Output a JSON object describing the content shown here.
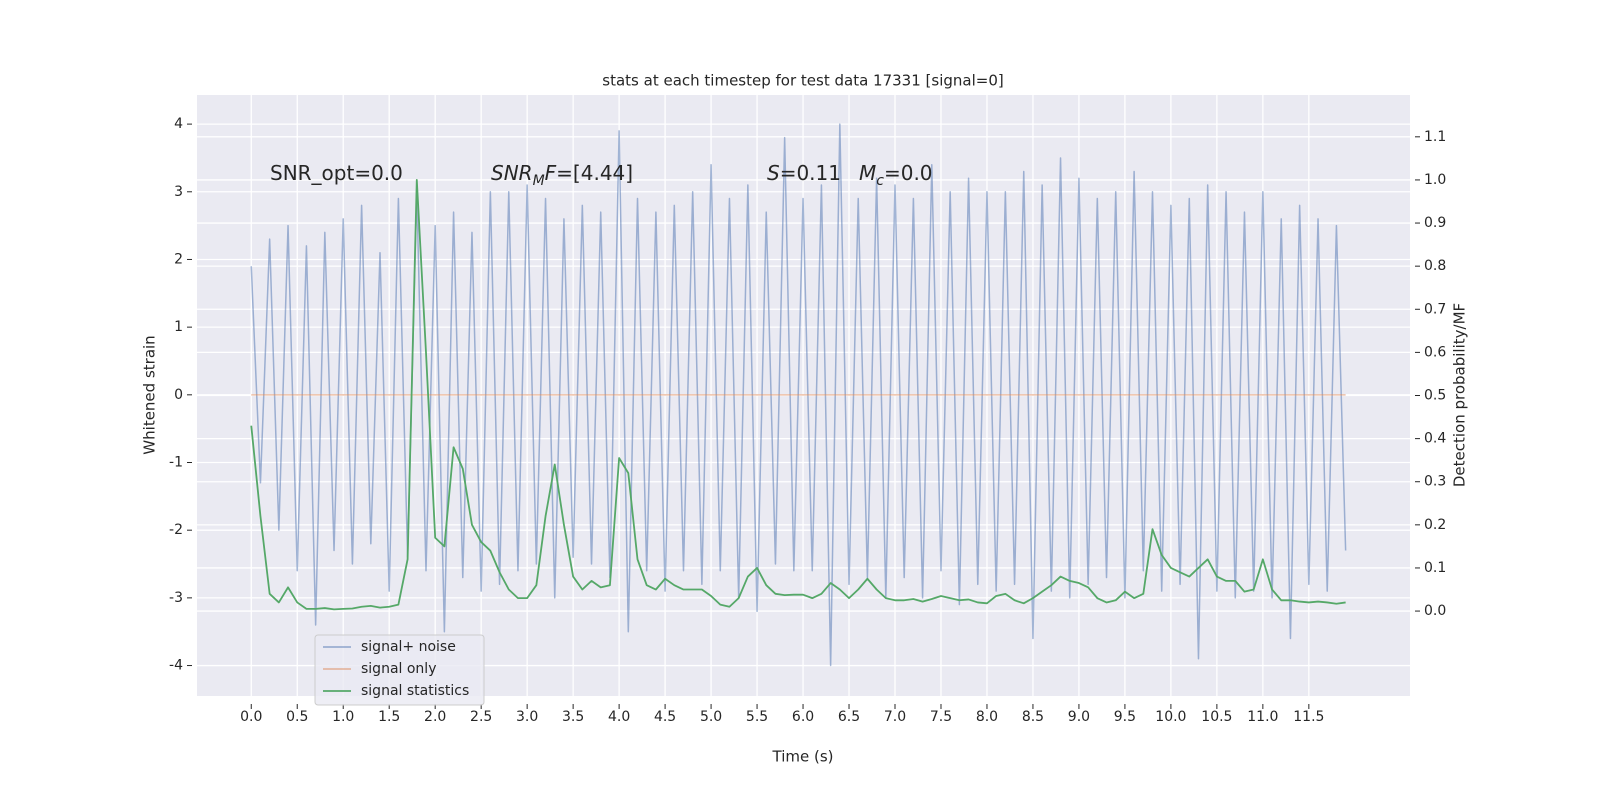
{
  "chart_data": {
    "type": "line",
    "title": "stats at each timestep for test data 17331 [signal=0]",
    "x_label": "Time (s)",
    "y_label": "Whitened strain",
    "y2_label": "Detection probability/MF",
    "xlim": [
      -0.59,
      12.6
    ],
    "ylim": [
      -4.45,
      4.43
    ],
    "y2lim": [
      -0.197,
      1.197
    ],
    "xticks": [
      {
        "value": 0,
        "label": "0.0"
      },
      {
        "value": 0.5,
        "label": "0.5"
      },
      {
        "value": 1,
        "label": "1.0"
      },
      {
        "value": 1.5,
        "label": "1.5"
      },
      {
        "value": 2,
        "label": "2.0"
      },
      {
        "value": 2.5,
        "label": "2.5"
      },
      {
        "value": 3,
        "label": "3.0"
      },
      {
        "value": 3.5,
        "label": "3.5"
      },
      {
        "value": 4,
        "label": "4.0"
      },
      {
        "value": 4.5,
        "label": "4.5"
      },
      {
        "value": 5,
        "label": "5.0"
      },
      {
        "value": 5.5,
        "label": "5.5"
      },
      {
        "value": 6,
        "label": "6.0"
      },
      {
        "value": 6.5,
        "label": "6.5"
      },
      {
        "value": 7,
        "label": "7.0"
      },
      {
        "value": 7.5,
        "label": "7.5"
      },
      {
        "value": 8,
        "label": "8.0"
      },
      {
        "value": 8.5,
        "label": "8.5"
      },
      {
        "value": 9,
        "label": "9.0"
      },
      {
        "value": 9.5,
        "label": "9.5"
      },
      {
        "value": 10,
        "label": "10.0"
      },
      {
        "value": 10.5,
        "label": "10.5"
      },
      {
        "value": 11,
        "label": "11.0"
      },
      {
        "value": 11.5,
        "label": "11.5"
      }
    ],
    "yticks": [
      -4,
      -3,
      -2,
      -1,
      0,
      1,
      2,
      3,
      4
    ],
    "y2ticks": [
      {
        "value": 0,
        "label": "0.0"
      },
      {
        "value": 0.1,
        "label": "0.1"
      },
      {
        "value": 0.2,
        "label": "0.2"
      },
      {
        "value": 0.3,
        "label": "0.3"
      },
      {
        "value": 0.4,
        "label": "0.4"
      },
      {
        "value": 0.5,
        "label": "0.5"
      },
      {
        "value": 0.6,
        "label": "0.6"
      },
      {
        "value": 0.7,
        "label": "0.7"
      },
      {
        "value": 0.8,
        "label": "0.8"
      },
      {
        "value": 0.9,
        "label": "0.9"
      },
      {
        "value": 1,
        "label": "1.0"
      },
      {
        "value": 1.1,
        "label": "1.1"
      }
    ],
    "grid": true,
    "legend": "lower left",
    "x": [
      0,
      0.1,
      0.2,
      0.3,
      0.4,
      0.5,
      0.6,
      0.7,
      0.8,
      0.9,
      1,
      1.1,
      1.2,
      1.3,
      1.4,
      1.5,
      1.6,
      1.7,
      1.8,
      1.9,
      2,
      2.1,
      2.2,
      2.3,
      2.4,
      2.5,
      2.6,
      2.7,
      2.8,
      2.9,
      3,
      3.1,
      3.2,
      3.3,
      3.4,
      3.5,
      3.6,
      3.7,
      3.8,
      3.9,
      4,
      4.1,
      4.2,
      4.3,
      4.4,
      4.5,
      4.6,
      4.7,
      4.8,
      4.9,
      5,
      5.1,
      5.2,
      5.3,
      5.4,
      5.5,
      5.6,
      5.7,
      5.8,
      5.9,
      6,
      6.1,
      6.2,
      6.3,
      6.4,
      6.5,
      6.6,
      6.7,
      6.8,
      6.9,
      7,
      7.1,
      7.2,
      7.3,
      7.4,
      7.5,
      7.6,
      7.7,
      7.8,
      7.9,
      8,
      8.1,
      8.2,
      8.3,
      8.4,
      8.5,
      8.6,
      8.7,
      8.8,
      8.9,
      9,
      9.1,
      9.2,
      9.3,
      9.4,
      9.5,
      9.6,
      9.7,
      9.8,
      9.9,
      10,
      10.1,
      10.2,
      10.3,
      10.4,
      10.5,
      10.6,
      10.7,
      10.8,
      10.9,
      11,
      11.1,
      11.2,
      11.3,
      11.4,
      11.5,
      11.6,
      11.7,
      11.8,
      11.9
    ],
    "series": [
      {
        "name": "signal+ noise",
        "color": "#4c72b0",
        "values": [
          1.9,
          -1.3,
          2.3,
          -2.0,
          2.5,
          -2.6,
          2.2,
          -3.4,
          2.4,
          -2.3,
          2.6,
          -2.5,
          2.8,
          -2.2,
          2.1,
          -2.9,
          2.9,
          -2.4,
          3.0,
          -2.6,
          2.5,
          -3.5,
          2.7,
          -2.7,
          2.4,
          -2.9,
          3.0,
          -2.8,
          3.0,
          -2.6,
          3.1,
          -2.5,
          2.9,
          -3.0,
          2.6,
          -2.4,
          2.8,
          -2.5,
          2.7,
          -2.7,
          3.9,
          -3.5,
          2.9,
          -2.6,
          2.7,
          -2.9,
          2.8,
          -2.6,
          3.0,
          -2.8,
          3.4,
          -2.6,
          2.9,
          -3.0,
          3.1,
          -3.2,
          2.7,
          -2.5,
          3.8,
          -2.6,
          2.9,
          -2.6,
          3.1,
          -4.0,
          4.0,
          -2.8,
          2.9,
          -2.7,
          3.2,
          -3.0,
          3.1,
          -2.7,
          2.9,
          -3.0,
          3.4,
          -2.6,
          3.0,
          -3.1,
          3.2,
          -2.8,
          3.0,
          -2.9,
          3.0,
          -2.8,
          3.3,
          -3.6,
          3.1,
          -2.9,
          3.5,
          -3.0,
          3.2,
          -2.8,
          2.9,
          -2.7,
          3.0,
          -3.0,
          3.3,
          -2.6,
          3.0,
          -2.9,
          2.8,
          -2.8,
          2.9,
          -3.9,
          3.1,
          -2.9,
          3.0,
          -3.0,
          2.7,
          -2.9,
          3.0,
          -3.0,
          2.6,
          -3.6,
          2.8,
          -2.8,
          2.6,
          -2.9,
          2.5,
          -2.3
        ]
      },
      {
        "name": "signal only",
        "color": "#dd8452",
        "values": [
          0,
          0,
          0,
          0,
          0,
          0,
          0,
          0,
          0,
          0,
          0,
          0,
          0,
          0,
          0,
          0,
          0,
          0,
          0,
          0,
          0,
          0,
          0,
          0,
          0,
          0,
          0,
          0,
          0,
          0,
          0,
          0,
          0,
          0,
          0,
          0,
          0,
          0,
          0,
          0,
          0,
          0,
          0,
          0,
          0,
          0,
          0,
          0,
          0,
          0,
          0,
          0,
          0,
          0,
          0,
          0,
          0,
          0,
          0,
          0,
          0,
          0,
          0,
          0,
          0,
          0,
          0,
          0,
          0,
          0,
          0,
          0,
          0,
          0,
          0,
          0,
          0,
          0,
          0,
          0,
          0,
          0,
          0,
          0,
          0,
          0,
          0,
          0,
          0,
          0,
          0,
          0,
          0,
          0,
          0,
          0,
          0,
          0,
          0,
          0,
          0,
          0,
          0,
          0,
          0,
          0,
          0,
          0,
          0,
          0,
          0,
          0,
          0,
          0,
          0,
          0,
          0,
          0,
          0,
          0
        ]
      },
      {
        "name": "signal statistics",
        "color": "#55a868",
        "axis": "y2",
        "values": [
          0.43,
          0.22,
          0.04,
          0.02,
          0.055,
          0.02,
          0.005,
          0.005,
          0.007,
          0.004,
          0.005,
          0.006,
          0.01,
          0.012,
          0.008,
          0.01,
          0.015,
          0.12,
          1.0,
          0.6,
          0.17,
          0.15,
          0.38,
          0.33,
          0.2,
          0.16,
          0.14,
          0.09,
          0.05,
          0.03,
          0.03,
          0.06,
          0.22,
          0.34,
          0.2,
          0.08,
          0.05,
          0.07,
          0.055,
          0.06,
          0.355,
          0.32,
          0.12,
          0.06,
          0.05,
          0.075,
          0.06,
          0.05,
          0.05,
          0.05,
          0.035,
          0.015,
          0.01,
          0.03,
          0.08,
          0.1,
          0.06,
          0.04,
          0.037,
          0.038,
          0.038,
          0.03,
          0.04,
          0.065,
          0.05,
          0.03,
          0.05,
          0.075,
          0.05,
          0.03,
          0.025,
          0.025,
          0.028,
          0.022,
          0.028,
          0.035,
          0.03,
          0.025,
          0.027,
          0.02,
          0.018,
          0.035,
          0.04,
          0.025,
          0.018,
          0.03,
          0.045,
          0.06,
          0.08,
          0.07,
          0.065,
          0.055,
          0.03,
          0.02,
          0.025,
          0.045,
          0.03,
          0.04,
          0.19,
          0.13,
          0.1,
          0.09,
          0.08,
          0.1,
          0.12,
          0.08,
          0.07,
          0.07,
          0.045,
          0.05,
          0.12,
          0.05,
          0.025,
          0.025,
          0.022,
          0.02,
          0.022,
          0.02,
          0.017,
          0.02
        ]
      }
    ],
    "annotations": [
      {
        "parts": [
          {
            "text": "SNR_opt=0.0"
          }
        ]
      },
      {
        "parts": [
          {
            "text": "SNR",
            "italic": true
          },
          {
            "text": "M",
            "italic": true,
            "sub": true
          },
          {
            "text": "F",
            "italic": true
          },
          {
            "text": "=[4.44]"
          }
        ]
      },
      {
        "parts": [
          {
            "text": "S",
            "italic": true
          },
          {
            "text": "=0.11"
          }
        ]
      },
      {
        "parts": [
          {
            "text": "M",
            "italic": true
          },
          {
            "text": "c",
            "italic": true,
            "sub": true
          },
          {
            "text": "=0.0"
          }
        ]
      }
    ]
  }
}
